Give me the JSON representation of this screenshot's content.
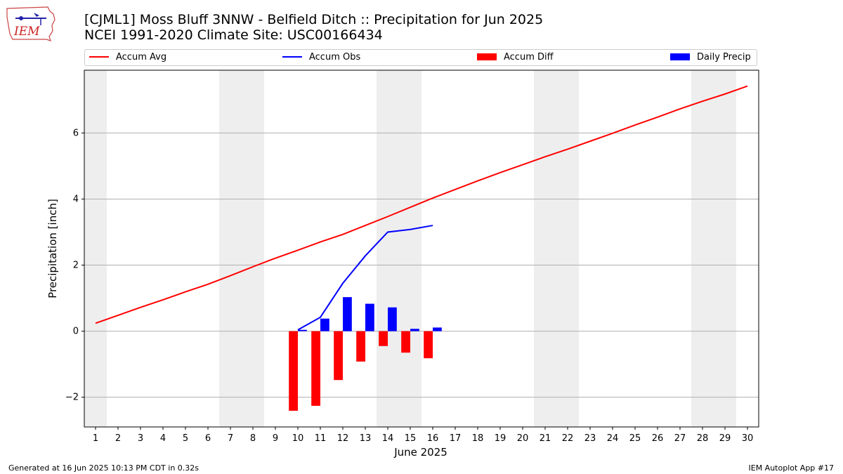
{
  "logo": {
    "text": "IEM"
  },
  "title": {
    "line1": "[CJML1] Moss Bluff 3NNW - Belfield Ditch :: Precipitation for Jun 2025",
    "line2": "NCEI 1991-2020 Climate Site: USC00166434"
  },
  "colors": {
    "accum_avg": "#ff0000",
    "accum_obs": "#0000ff",
    "accum_diff": "#ff0000",
    "daily_precip": "#0000ff",
    "weekend_shade": "#eeeeee",
    "grid": "#b0b0b0"
  },
  "footer": {
    "left": "Generated at 16 Jun 2025 10:13 PM CDT in 0.32s",
    "right": "IEM Autoplot App #17"
  },
  "chart_data": {
    "type": "bar",
    "xlabel": "June 2025",
    "ylabel": "Precipitation [inch]",
    "xlim": [
      0.5,
      30.5
    ],
    "ylim": [
      -2.9,
      7.9
    ],
    "x_ticks": [
      1,
      2,
      3,
      4,
      5,
      6,
      7,
      8,
      9,
      10,
      11,
      12,
      13,
      14,
      15,
      16,
      17,
      18,
      19,
      20,
      21,
      22,
      23,
      24,
      25,
      26,
      27,
      28,
      29,
      30
    ],
    "y_ticks": [
      -2,
      0,
      2,
      4,
      6
    ],
    "y_tick_labels": [
      "−2",
      "0",
      "2",
      "4",
      "6"
    ],
    "grid": "horizontal",
    "legend_position": "top",
    "shaded_days": [
      [
        0.5,
        1.5
      ],
      [
        6.5,
        8.5
      ],
      [
        13.5,
        15.5
      ],
      [
        20.5,
        22.5
      ],
      [
        27.5,
        29.5
      ]
    ],
    "series": [
      {
        "name": "Accum Avg",
        "kind": "line",
        "x": [
          1,
          2,
          3,
          4,
          5,
          6,
          7,
          8,
          9,
          10,
          11,
          12,
          13,
          14,
          15,
          16,
          17,
          18,
          19,
          20,
          21,
          22,
          23,
          24,
          25,
          26,
          27,
          28,
          29,
          30
        ],
        "values": [
          0.24,
          0.48,
          0.72,
          0.95,
          1.19,
          1.42,
          1.68,
          1.95,
          2.21,
          2.45,
          2.7,
          2.93,
          3.2,
          3.47,
          3.75,
          4.03,
          4.29,
          4.55,
          4.8,
          5.04,
          5.28,
          5.51,
          5.75,
          5.99,
          6.24,
          6.48,
          6.73,
          6.96,
          7.18,
          7.42
        ]
      },
      {
        "name": "Accum Obs",
        "kind": "line",
        "x": [
          10,
          11,
          12,
          13,
          14,
          15,
          16
        ],
        "values": [
          0.04,
          0.42,
          1.45,
          2.28,
          3.0,
          3.08,
          3.2
        ]
      },
      {
        "name": "Accum Diff",
        "kind": "bar",
        "x": [
          10,
          11,
          12,
          13,
          14,
          15,
          16
        ],
        "values": [
          -2.41,
          -2.26,
          -1.48,
          -0.92,
          -0.45,
          -0.65,
          -0.82
        ]
      },
      {
        "name": "Daily Precip",
        "kind": "bar",
        "x": [
          10,
          11,
          12,
          13,
          14,
          15,
          16
        ],
        "values": [
          0.04,
          0.38,
          1.03,
          0.83,
          0.72,
          0.07,
          0.11
        ]
      }
    ]
  }
}
